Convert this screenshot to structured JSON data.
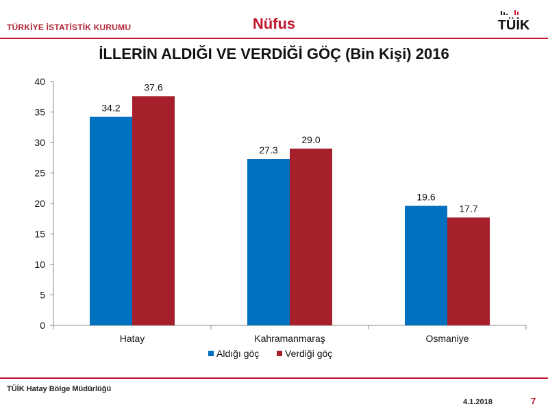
{
  "header": {
    "org_name": "TÜRKİYE İSTATİSTİK KURUMU",
    "section": "Nüfus",
    "logo_text": "TÜİK"
  },
  "footer": {
    "office": "TÜİK Hatay Bölge Müdürlüğü",
    "date": "4.1.2018",
    "page_number": "7"
  },
  "colors": {
    "accent": "#c4122f",
    "series_aldigi": "#0070c0",
    "series_verdigi": "#a6202c"
  },
  "chart_data": {
    "type": "bar",
    "title": "İLLERİN ALDIĞI VE VERDİĞİ GÖÇ (Bin Kişi) 2016",
    "categories": [
      "Hatay",
      "Kahramanmaraş",
      "Osmaniye"
    ],
    "series": [
      {
        "name": "Aldığı göç",
        "values": [
          34.2,
          27.3,
          19.6
        ],
        "labels": [
          "34.2",
          "27.3",
          "19.6"
        ]
      },
      {
        "name": "Verdiği göç",
        "values": [
          37.6,
          29.0,
          17.7
        ],
        "labels": [
          "37.6",
          "29.0",
          "17.7"
        ]
      }
    ],
    "ylim": [
      0,
      40
    ],
    "yticks": [
      0,
      5,
      10,
      15,
      20,
      25,
      30,
      35,
      40
    ],
    "grid": false,
    "legend": "bottom-center"
  }
}
